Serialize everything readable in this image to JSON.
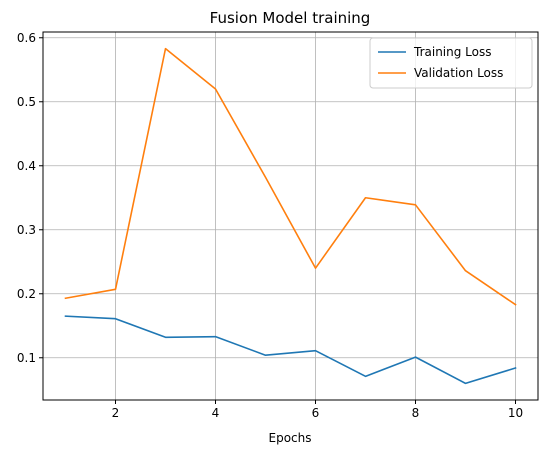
{
  "chart_data": {
    "type": "line",
    "title": "Fusion Model training",
    "xlabel": "Epochs",
    "ylabel": "",
    "x": [
      1,
      2,
      3,
      4,
      5,
      6,
      7,
      8,
      9,
      10
    ],
    "series": [
      {
        "name": "Training Loss",
        "color": "#1f77b4",
        "values": [
          0.165,
          0.161,
          0.132,
          0.133,
          0.104,
          0.111,
          0.071,
          0.101,
          0.06,
          0.084
        ]
      },
      {
        "name": "Validation Loss",
        "color": "#ff7f0e",
        "values": [
          0.193,
          0.207,
          0.583,
          0.52,
          0.382,
          0.24,
          0.35,
          0.339,
          0.236,
          0.183
        ]
      }
    ],
    "xlim": [
      0.55,
      10.45
    ],
    "ylim": [
      0.034,
      0.609
    ],
    "xticks": [
      2,
      4,
      6,
      8,
      10
    ],
    "xtick_labels": [
      "2",
      "4",
      "6",
      "8",
      "10"
    ],
    "yticks": [
      0.1,
      0.2,
      0.3,
      0.4,
      0.5,
      0.6
    ],
    "ytick_labels": [
      "0.1",
      "0.2",
      "0.3",
      "0.4",
      "0.5",
      "0.6"
    ],
    "grid": true,
    "legend_position": "top-right"
  }
}
